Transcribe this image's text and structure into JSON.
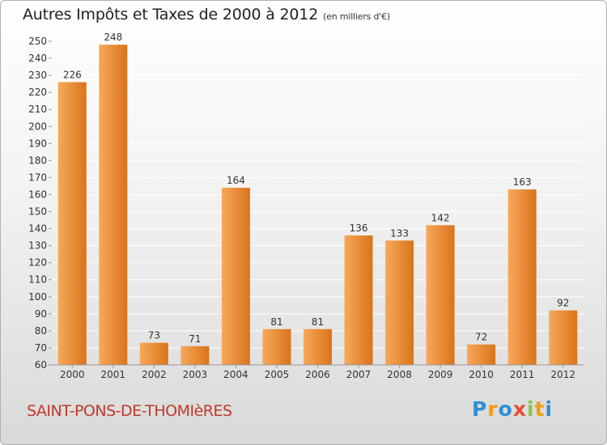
{
  "header": {
    "title": "Autres Impôts et Taxes de 2000 à 2012",
    "unit": "(en milliers d'€)"
  },
  "footer": {
    "city": "SAINT-PONS-DE-THOMIèRES",
    "logo_letters": [
      "P",
      "r",
      "o",
      "x",
      "i",
      "t",
      "i"
    ],
    "logo_colors": [
      "#2d8fd5",
      "#f39c12",
      "#2d8fd5",
      "#e74c3c",
      "#8bc34a",
      "#f39c12",
      "#2d8fd5"
    ]
  },
  "colors": {
    "bar_light": "#f7a85a",
    "bar_dark": "#d9741a",
    "city": "#c0392b"
  },
  "chart_data": {
    "type": "bar",
    "categories": [
      "2000",
      "2001",
      "2002",
      "2003",
      "2004",
      "2005",
      "2006",
      "2007",
      "2008",
      "2009",
      "2010",
      "2011",
      "2012"
    ],
    "values": [
      226,
      248,
      73,
      71,
      164,
      81,
      81,
      136,
      133,
      142,
      72,
      163,
      92
    ],
    "title": "Autres Impôts et Taxes de 2000 à 2012",
    "subtitle": "(en milliers d'€)",
    "xlabel": "",
    "ylabel": "",
    "ylim": [
      60,
      250
    ],
    "ytick_step": 10,
    "grid": true,
    "legend": "none"
  }
}
